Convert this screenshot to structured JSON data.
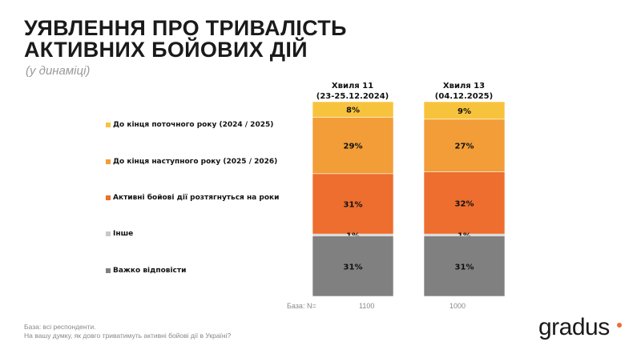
{
  "title": "УЯВЛЕННЯ ПРО ТРИВАЛІСТЬ АКТИВНИХ БОЙОВИХ ДІЙ",
  "subtitle": "(у динаміці)",
  "chart_data": {
    "type": "bar",
    "stacked": true,
    "orientation": "vertical",
    "categories": [
      "Хвиля 11",
      "Хвиля 13"
    ],
    "category_dates": [
      "(23-25.12.2024)",
      "(04.12.2025)"
    ],
    "series": [
      {
        "name": "До кінця поточного року (2024 / 2025)",
        "color": "#F8C33C",
        "values": [
          8,
          9
        ]
      },
      {
        "name": "До кінця наступного року (2025 / 2026)",
        "color": "#F29D38",
        "values": [
          29,
          27
        ]
      },
      {
        "name": "Активні бойові дії розтягнуться на роки",
        "color": "#ED6E2E",
        "values": [
          31,
          32
        ]
      },
      {
        "name": "Інше",
        "color": "#C8C8C8",
        "values": [
          1,
          1
        ]
      },
      {
        "name": "Важко відповісти",
        "color": "#808080",
        "values": [
          31,
          31
        ]
      }
    ],
    "value_suffix": "%",
    "legend_placement": "left",
    "base_label": "База: N=",
    "base_values": [
      "1100",
      "1000"
    ]
  },
  "footer": {
    "line1": "База: всі респонденти.",
    "line2": "На вашу думку, як довго триватимуть активні бойові дії в Україні?"
  },
  "logo": "gradus"
}
